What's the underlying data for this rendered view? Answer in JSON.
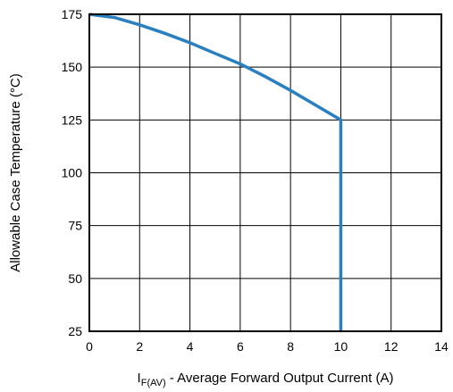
{
  "chart_data": {
    "type": "line",
    "title": "",
    "xlabel_main": "I",
    "xlabel_sub": "F(AV)",
    "xlabel_rest": " - Average Forward Output Current (A)",
    "ylabel": "Allowable Case Temperature (°C)",
    "xlim": [
      0,
      14
    ],
    "ylim": [
      25,
      175
    ],
    "x_ticks": [
      0,
      2,
      4,
      6,
      8,
      10,
      12,
      14
    ],
    "y_ticks": [
      25,
      50,
      75,
      100,
      125,
      150,
      175
    ],
    "grid": true,
    "colors": {
      "series": "#2A7FC0",
      "grid": "#000000"
    },
    "series": [
      {
        "points": [
          [
            0,
            175
          ],
          [
            1,
            173.5
          ],
          [
            2,
            170
          ],
          [
            3,
            166
          ],
          [
            4,
            161.5
          ],
          [
            5,
            156.5
          ],
          [
            6,
            151.5
          ],
          [
            7,
            145.5
          ],
          [
            8,
            139
          ],
          [
            9,
            132
          ],
          [
            10,
            125
          ],
          [
            10,
            25
          ]
        ]
      }
    ]
  }
}
